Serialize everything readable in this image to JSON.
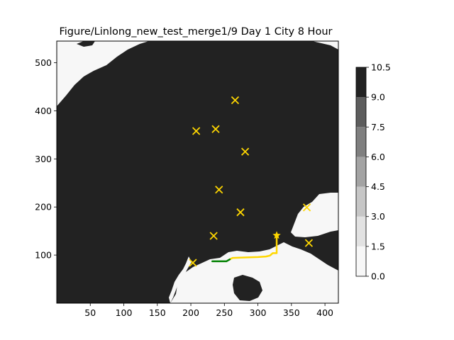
{
  "chart_data": {
    "type": "heatmap",
    "title": "Figure/Linlong_new_test_merge1/9 Day 1 City 8 Hour",
    "xlabel": "",
    "ylabel": "",
    "xlim": [
      0,
      420
    ],
    "ylim": [
      0,
      545
    ],
    "x_ticks": [
      50,
      100,
      150,
      200,
      250,
      300,
      350,
      400
    ],
    "y_ticks": [
      100,
      200,
      300,
      400,
      500
    ],
    "colorbar": {
      "levels": [
        0.0,
        1.5,
        3.0,
        4.5,
        6.0,
        7.5,
        9.0,
        10.5
      ],
      "tick_labels": [
        "0.0",
        "1.5",
        "3.0",
        "4.5",
        "6.0",
        "7.5",
        "9.0",
        "10.5"
      ],
      "colors": [
        "#f7f7f7",
        "#e2e2e2",
        "#c6c6c6",
        "#a3a3a3",
        "#7f7f7f",
        "#5d5d5d",
        "#222222"
      ]
    },
    "land_value_color": "#222222",
    "sea_value_color": "#f7f7f7",
    "cities": [
      {
        "x": 266,
        "y": 422
      },
      {
        "x": 208,
        "y": 358
      },
      {
        "x": 237,
        "y": 362
      },
      {
        "x": 281,
        "y": 315
      },
      {
        "x": 242,
        "y": 236
      },
      {
        "x": 274,
        "y": 189
      },
      {
        "x": 373,
        "y": 199
      },
      {
        "x": 234,
        "y": 140
      },
      {
        "x": 376,
        "y": 125
      },
      {
        "x": 203,
        "y": 84
      }
    ],
    "marker_color": "#ffd700",
    "start_point": {
      "x": 328,
      "y": 141
    },
    "path_segments": [
      {
        "color": "#ffd700",
        "points": [
          [
            328,
            141
          ],
          [
            328,
            104
          ],
          [
            322,
            104
          ],
          [
            318,
            99
          ],
          [
            312,
            97
          ],
          [
            300,
            96
          ],
          [
            280,
            95
          ],
          [
            262,
            94
          ],
          [
            258,
            91
          ]
        ]
      },
      {
        "color": "#008000",
        "points": [
          [
            258,
            91
          ],
          [
            253,
            87
          ],
          [
            232,
            87
          ]
        ]
      }
    ]
  }
}
